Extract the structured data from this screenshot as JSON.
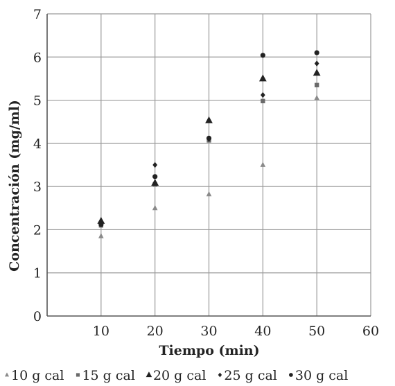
{
  "chart_data": {
    "type": "scatter",
    "title": "",
    "xlabel": "Tiempo (min)",
    "ylabel": "Concentración (mg/ml)",
    "xlim": [
      0,
      60
    ],
    "ylim": [
      0,
      7
    ],
    "xticks": [
      10,
      20,
      30,
      40,
      50,
      60
    ],
    "yticks": [
      0,
      1,
      2,
      3,
      4,
      5,
      6,
      7
    ],
    "grid": true,
    "legend_position": "bottom",
    "series": [
      {
        "name": "10 g cal",
        "marker": "triangle-small",
        "color": "#8a8a8a",
        "x": [
          10,
          20,
          30,
          40,
          50
        ],
        "y": [
          1.85,
          2.5,
          2.82,
          3.5,
          5.05
        ]
      },
      {
        "name": "15 g cal",
        "marker": "square",
        "color": "#6a6a6a",
        "x": [
          10,
          20,
          30,
          40,
          50
        ],
        "y": [
          2.1,
          3.05,
          4.07,
          4.98,
          5.35
        ]
      },
      {
        "name": "20 g cal",
        "marker": "triangle",
        "color": "#222222",
        "x": [
          10,
          20,
          30,
          40,
          50
        ],
        "y": [
          2.2,
          3.08,
          4.53,
          5.5,
          5.63
        ]
      },
      {
        "name": "25 g cal",
        "marker": "diamond",
        "color": "#222222",
        "x": [
          10,
          20,
          30,
          40,
          50
        ],
        "y": [
          2.15,
          3.5,
          4.1,
          5.12,
          5.85
        ]
      },
      {
        "name": "30 g cal",
        "marker": "circle",
        "color": "#222222",
        "x": [
          10,
          20,
          30,
          40,
          50
        ],
        "y": [
          2.12,
          3.23,
          4.12,
          6.04,
          6.1
        ]
      }
    ]
  }
}
